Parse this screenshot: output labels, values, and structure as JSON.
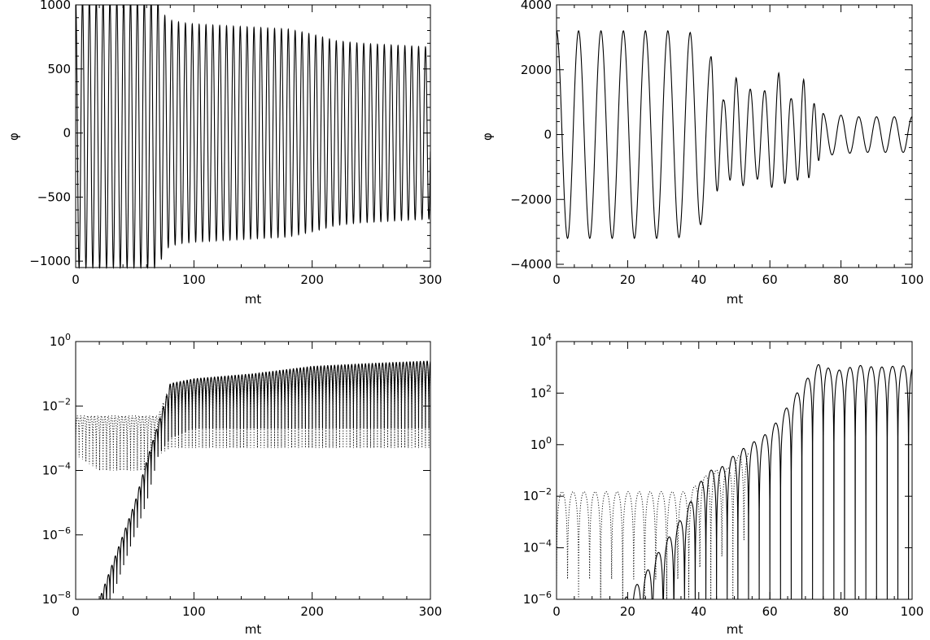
{
  "chart_data": [
    {
      "type": "line",
      "title": "",
      "xlabel": "mt",
      "ylabel": "φ",
      "xlim": [
        0,
        300
      ],
      "ylim": [
        -1050,
        1000
      ],
      "x_ticks": [
        "0",
        "100",
        "200",
        "300"
      ],
      "y_ticks": [
        "-1000",
        "-500",
        "0",
        "500",
        "1000"
      ],
      "grid": false,
      "legend": "none",
      "series": [
        {
          "style": "solid",
          "color": "#000000",
          "x": [
            0,
            10,
            20,
            30,
            40,
            50,
            60,
            70,
            75,
            80,
            90,
            100,
            120,
            140,
            160,
            180,
            200,
            220,
            240,
            260,
            280,
            300
          ],
          "envelope": [
            1050,
            1050,
            1050,
            1050,
            1050,
            1050,
            1050,
            1050,
            920,
            880,
            860,
            850,
            840,
            830,
            820,
            810,
            770,
            720,
            700,
            690,
            680,
            670
          ],
          "oscillation_period": 5.8
        }
      ]
    },
    {
      "type": "line",
      "title": "",
      "xlabel": "mt",
      "ylabel": "φ",
      "xlim": [
        0,
        100
      ],
      "ylim": [
        -4100,
        4000
      ],
      "x_ticks": [
        "0",
        "20",
        "40",
        "60",
        "80",
        "100"
      ],
      "y_ticks": [
        "-4000",
        "-2000",
        "0",
        "2000",
        "4000"
      ],
      "grid": false,
      "legend": "none",
      "series": [
        {
          "style": "solid",
          "color": "#000000",
          "x": [
            0,
            6.2,
            12.5,
            18.8,
            25,
            31.3,
            37.6,
            43.5,
            47,
            50.5,
            54.5,
            58.5,
            62.5,
            66,
            69.5,
            72.5,
            75,
            80,
            85,
            90,
            95,
            100
          ],
          "peaks": [
            3200,
            3200,
            3200,
            3200,
            3200,
            3200,
            3150,
            2400,
            1050,
            1750,
            1400,
            1350,
            1900,
            1100,
            1700,
            950,
            650,
            600,
            550,
            550,
            550,
            550
          ]
        }
      ]
    },
    {
      "type": "line",
      "title": "",
      "xlabel": "mt",
      "ylabel": "",
      "yscale": "log",
      "xlim": [
        0,
        300
      ],
      "ylim": [
        1e-08,
        1
      ],
      "x_ticks": [
        "0",
        "100",
        "200",
        "300"
      ],
      "y_ticks": [
        "10^-8",
        "10^-6",
        "10^-4",
        "10^-2",
        "10^0"
      ],
      "grid": false,
      "legend": "none",
      "series": [
        {
          "style": "solid",
          "color": "#000000",
          "x": [
            15,
            20,
            30,
            40,
            50,
            60,
            70,
            80,
            100,
            150,
            200,
            250,
            300
          ],
          "peaks": [
            3e-09,
            1e-08,
            1e-07,
            1e-06,
            1e-05,
            0.0002,
            0.003,
            0.05,
            0.07,
            0.1,
            0.17,
            0.21,
            0.25
          ],
          "troughs": [
            1e-09,
            1e-09,
            1e-08,
            1e-07,
            1e-06,
            1e-05,
            0.0003,
            0.001,
            0.002,
            0.002,
            0.002,
            0.002,
            0.002
          ]
        },
        {
          "style": "dotted",
          "color": "#000000",
          "x": [
            0,
            20,
            40,
            60,
            70,
            80,
            100,
            150,
            200,
            250,
            300
          ],
          "peaks": [
            0.005,
            0.005,
            0.005,
            0.005,
            0.005,
            0.05,
            0.07,
            0.1,
            0.17,
            0.21,
            0.25
          ],
          "troughs": [
            0.0003,
            0.0001,
            0.0001,
            0.0001,
            0.0003,
            0.0005,
            0.0005,
            0.0005,
            0.0005,
            0.0005,
            0.0005
          ]
        }
      ]
    },
    {
      "type": "line",
      "title": "",
      "xlabel": "mt",
      "ylabel": "",
      "yscale": "log",
      "xlim": [
        0,
        100
      ],
      "ylim": [
        1e-06,
        10000
      ],
      "x_ticks": [
        "0",
        "20",
        "40",
        "60",
        "80",
        "100"
      ],
      "y_ticks": [
        "10^-6",
        "10^-4",
        "10^-2",
        "10^0",
        "10^2",
        "10^4"
      ],
      "grid": false,
      "legend": "none",
      "series": [
        {
          "style": "solid",
          "color": "#000000",
          "x": [
            19,
            22,
            25,
            28,
            31,
            34,
            37,
            40,
            43,
            46,
            50,
            54,
            58,
            62,
            66,
            70,
            74,
            78,
            85,
            90,
            95,
            100
          ],
          "peaks": [
            1e-06,
            3e-06,
            1e-05,
            5e-05,
            0.0002,
            0.0008,
            0.004,
            0.03,
            0.1,
            0.12,
            0.4,
            1,
            2,
            8,
            50,
            300,
            1500,
            700,
            1200,
            1000,
            1100,
            1200
          ]
        },
        {
          "style": "dotted",
          "color": "#000000",
          "x": [
            0,
            6.2,
            12.5,
            18.8,
            25,
            31.3,
            37.6,
            40,
            44,
            48,
            52
          ],
          "peaks": [
            0.015,
            0.015,
            0.015,
            0.015,
            0.015,
            0.015,
            0.015,
            0.04,
            0.1,
            0.12,
            0.5
          ]
        }
      ]
    }
  ]
}
